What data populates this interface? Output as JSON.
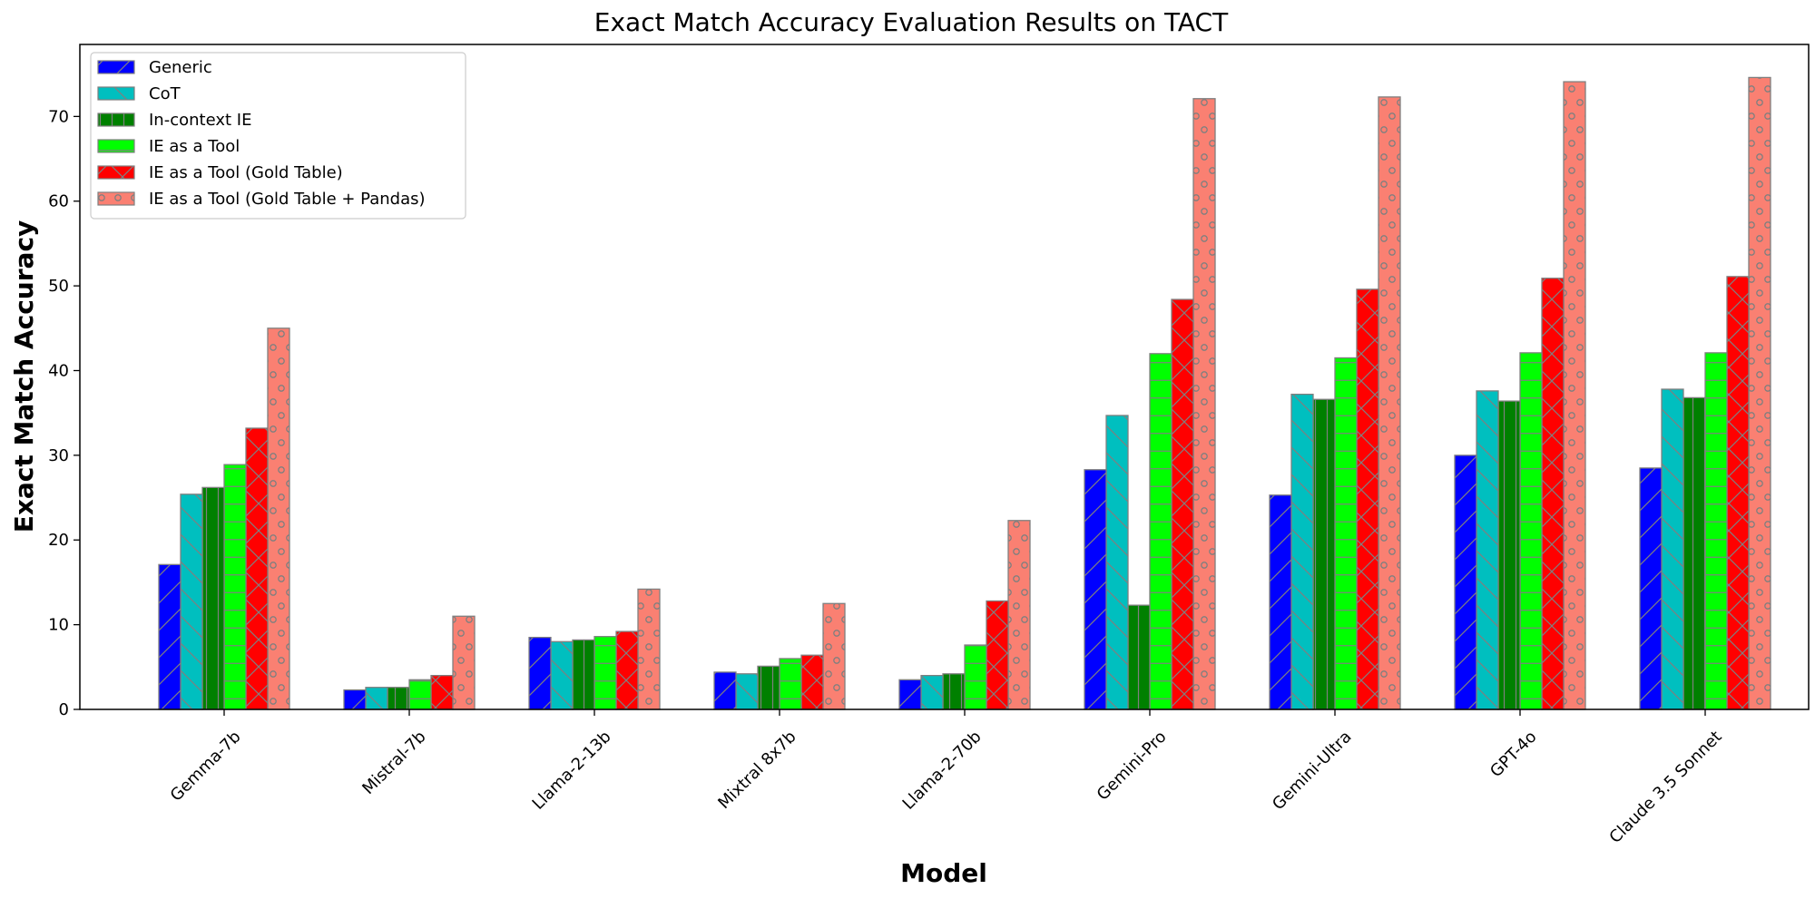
{
  "chart_data": {
    "type": "bar",
    "title": "Exact Match Accuracy Evaluation Results on TACT",
    "xlabel": "Model",
    "ylabel": "Exact Match Accuracy",
    "ylim": [
      0,
      78.5
    ],
    "yticks": [
      0,
      10,
      20,
      30,
      40,
      50,
      60,
      70
    ],
    "grid": false,
    "legend_position": "top-left",
    "categories": [
      "Gemma-7b",
      "Mistral-7b",
      "Llama-2-13b",
      "Mixtral 8x7b",
      "Llama-2-70b",
      "Gemini-Pro",
      "Gemini-Ultra",
      "GPT-4o",
      "Claude 3.5 Sonnet"
    ],
    "series": [
      {
        "name": "Generic",
        "color": "#0000ff",
        "hatch": "diagonal",
        "values": [
          17.1,
          2.3,
          8.5,
          4.4,
          3.5,
          28.3,
          25.3,
          30.0,
          28.5
        ]
      },
      {
        "name": "CoT",
        "color": "#00bfbf",
        "hatch": "back-diagonal",
        "values": [
          25.4,
          2.6,
          8.0,
          4.2,
          4.0,
          34.7,
          37.2,
          37.6,
          37.8
        ]
      },
      {
        "name": "In-context IE",
        "color": "#008000",
        "hatch": "vertical",
        "values": [
          26.2,
          2.6,
          8.2,
          5.1,
          4.2,
          12.3,
          36.6,
          36.4,
          36.8
        ]
      },
      {
        "name": "IE as a Tool",
        "color": "#00ff00",
        "hatch": "horizontal",
        "values": [
          28.9,
          3.5,
          8.6,
          6.0,
          7.6,
          42.0,
          41.5,
          42.1,
          42.1
        ]
      },
      {
        "name": "IE as a Tool (Gold Table)",
        "color": "#ff0000",
        "hatch": "cross",
        "values": [
          33.2,
          4.0,
          9.2,
          6.4,
          12.8,
          48.4,
          49.6,
          50.9,
          51.1
        ]
      },
      {
        "name": "IE as a Tool (Gold Table + Pandas)",
        "color": "#fa8072",
        "hatch": "circles",
        "values": [
          45.0,
          11.0,
          14.2,
          12.5,
          22.3,
          72.1,
          72.3,
          74.1,
          74.6
        ]
      }
    ]
  }
}
